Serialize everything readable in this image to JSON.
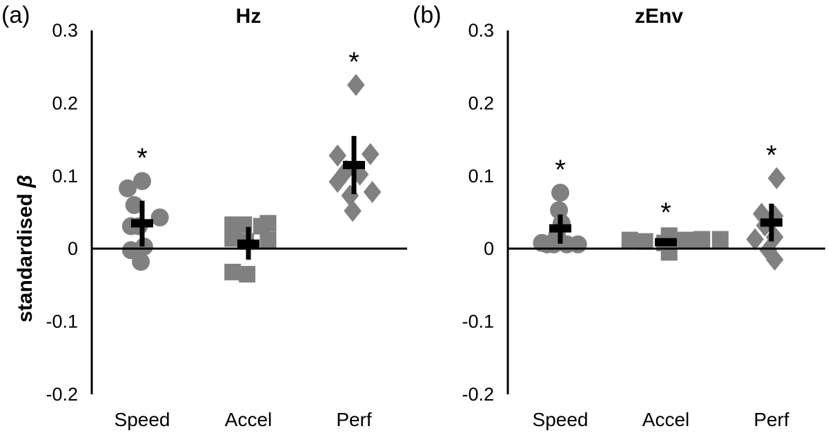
{
  "chart_data": [
    {
      "type": "scatter",
      "panel_label": "(a)",
      "title": "Hz",
      "xlabel": "",
      "ylabel": "standardised β",
      "ylabel_text": "standardised",
      "ylabel_symbol": "β",
      "ylim": [
        -0.2,
        0.3
      ],
      "yticks": [
        0.3,
        0.2,
        0.1,
        0,
        -0.1,
        -0.2
      ],
      "ytick_labels": [
        "0.3",
        "0.2",
        "0.1",
        "0",
        "-0.1",
        "-0.2"
      ],
      "categories": [
        "Speed",
        "Accel",
        "Perf"
      ],
      "marker_color": "#808080",
      "summary_color": "#000000",
      "series": [
        {
          "name": "Speed",
          "marker": "circle",
          "points": [
            {
              "x": -0.22,
              "y": 0.083
            },
            {
              "x": 0.0,
              "y": 0.093
            },
            {
              "x": -0.12,
              "y": 0.06
            },
            {
              "x": 0.27,
              "y": 0.043
            },
            {
              "x": -0.17,
              "y": 0.031
            },
            {
              "x": -0.05,
              "y": 0.031
            },
            {
              "x": -0.17,
              "y": -0.002
            },
            {
              "x": 0.03,
              "y": 0.003
            },
            {
              "x": -0.02,
              "y": -0.018
            }
          ],
          "mean": 0.035,
          "ci": [
            0.003,
            0.066
          ],
          "significant": true,
          "significance_mark": "*"
        },
        {
          "name": "Accel",
          "marker": "square",
          "points": [
            {
              "x": -0.24,
              "y": 0.033
            },
            {
              "x": -0.07,
              "y": 0.033
            },
            {
              "x": 0.2,
              "y": 0.031
            },
            {
              "x": 0.3,
              "y": 0.035
            },
            {
              "x": -0.24,
              "y": 0.014
            },
            {
              "x": 0.3,
              "y": 0.012
            },
            {
              "x": -0.04,
              "y": 0.01
            },
            {
              "x": -0.24,
              "y": -0.032
            },
            {
              "x": -0.02,
              "y": -0.035
            }
          ],
          "mean": 0.007,
          "ci": [
            -0.015,
            0.03
          ],
          "significant": false,
          "significance_mark": ""
        },
        {
          "name": "Perf",
          "marker": "diamond",
          "points": [
            {
              "x": 0.03,
              "y": 0.225
            },
            {
              "x": -0.25,
              "y": 0.128
            },
            {
              "x": 0.25,
              "y": 0.13
            },
            {
              "x": -0.12,
              "y": 0.107
            },
            {
              "x": -0.25,
              "y": 0.092
            },
            {
              "x": 0.09,
              "y": 0.102
            },
            {
              "x": 0.28,
              "y": 0.078
            },
            {
              "x": -0.06,
              "y": 0.073
            },
            {
              "x": -0.02,
              "y": 0.052
            }
          ],
          "mean": 0.115,
          "ci": [
            0.075,
            0.155
          ],
          "significant": true,
          "significance_mark": "*"
        }
      ]
    },
    {
      "type": "scatter",
      "panel_label": "(b)",
      "title": "zEnv",
      "xlabel": "",
      "ylabel": "",
      "ylim": [
        -0.2,
        0.3
      ],
      "yticks": [
        0.3,
        0.2,
        0.1,
        0,
        -0.1,
        -0.2
      ],
      "ytick_labels": [
        "0.3",
        "0.2",
        "0.1",
        "0",
        "-0.1",
        "-0.2"
      ],
      "categories": [
        "Speed",
        "Accel",
        "Perf"
      ],
      "marker_color": "#808080",
      "summary_color": "#000000",
      "series": [
        {
          "name": "Speed",
          "marker": "circle",
          "points": [
            {
              "x": 0.0,
              "y": 0.077
            },
            {
              "x": -0.02,
              "y": 0.053
            },
            {
              "x": 0.02,
              "y": 0.035
            },
            {
              "x": -0.05,
              "y": 0.018
            },
            {
              "x": -0.28,
              "y": 0.008
            },
            {
              "x": -0.1,
              "y": 0.006
            },
            {
              "x": 0.1,
              "y": 0.006
            },
            {
              "x": 0.27,
              "y": 0.006
            },
            {
              "x": -0.2,
              "y": 0.006
            }
          ],
          "mean": 0.028,
          "ci": [
            0.007,
            0.047
          ],
          "significant": true,
          "significance_mark": "*"
        },
        {
          "name": "Accel",
          "marker": "square",
          "points": [
            {
              "x": -0.55,
              "y": 0.012
            },
            {
              "x": -0.32,
              "y": 0.01
            },
            {
              "x": 0.05,
              "y": 0.018
            },
            {
              "x": 0.3,
              "y": 0.012
            },
            {
              "x": 0.55,
              "y": 0.013
            },
            {
              "x": 0.83,
              "y": 0.013
            },
            {
              "x": -0.02,
              "y": 0.008
            },
            {
              "x": 0.05,
              "y": -0.005
            }
          ],
          "mean": 0.009,
          "ci": [
            0.006,
            0.012
          ],
          "significant": true,
          "significance_mark": "*"
        },
        {
          "name": "Perf",
          "marker": "diamond",
          "points": [
            {
              "x": 0.08,
              "y": 0.097
            },
            {
              "x": -0.15,
              "y": 0.048
            },
            {
              "x": 0.05,
              "y": 0.045
            },
            {
              "x": -0.1,
              "y": 0.032
            },
            {
              "x": -0.25,
              "y": 0.013
            },
            {
              "x": 0.05,
              "y": 0.016
            },
            {
              "x": -0.05,
              "y": -0.002
            },
            {
              "x": 0.05,
              "y": -0.015
            }
          ],
          "mean": 0.036,
          "ci": [
            0.01,
            0.062
          ],
          "significant": true,
          "significance_mark": "*"
        }
      ]
    }
  ]
}
